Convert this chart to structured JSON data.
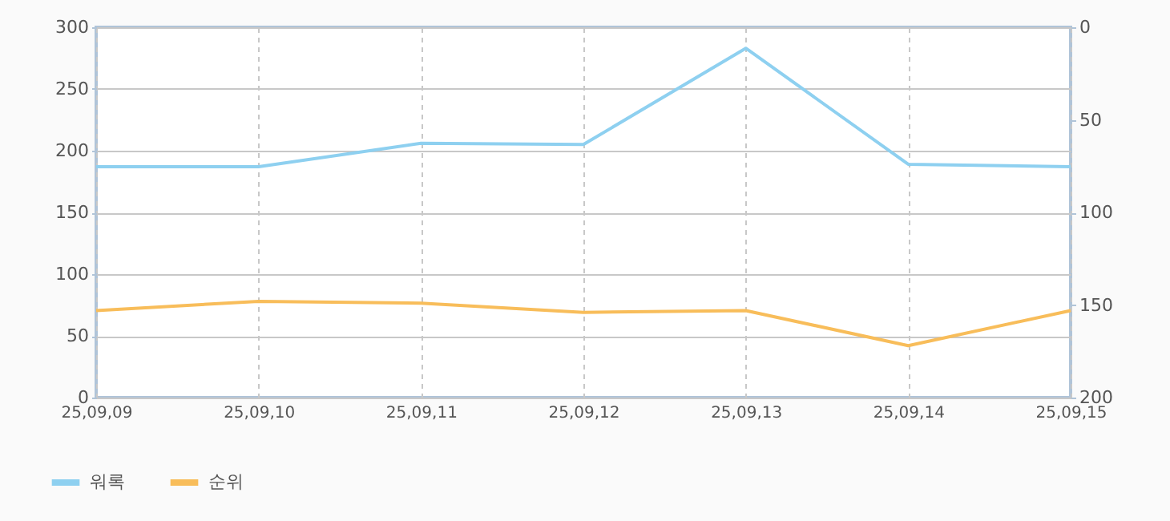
{
  "chart_data": {
    "type": "line",
    "categories": [
      "25,09,09",
      "25,09,10",
      "25,09,11",
      "25,09,12",
      "25,09,13",
      "25,09,14",
      "25,09,15"
    ],
    "series": [
      {
        "name": "워록",
        "color": "#8ed0f0",
        "values": [
          187,
          187,
          206,
          205,
          283,
          189,
          187
        ]
      },
      {
        "name": "순위",
        "color": "#f8bd5a",
        "axis": "y2",
        "values": [
          153,
          148,
          149,
          154,
          153,
          172,
          153
        ]
      }
    ],
    "ylim": [
      0,
      300
    ],
    "yticks": [
      0,
      50,
      100,
      150,
      200,
      250,
      300
    ],
    "y2lim": [
      200,
      0
    ],
    "y2ticks": [
      0,
      50,
      100,
      150,
      200
    ],
    "grid": true,
    "legend": "bottom left",
    "marker": "none",
    "line_style": "solid"
  }
}
